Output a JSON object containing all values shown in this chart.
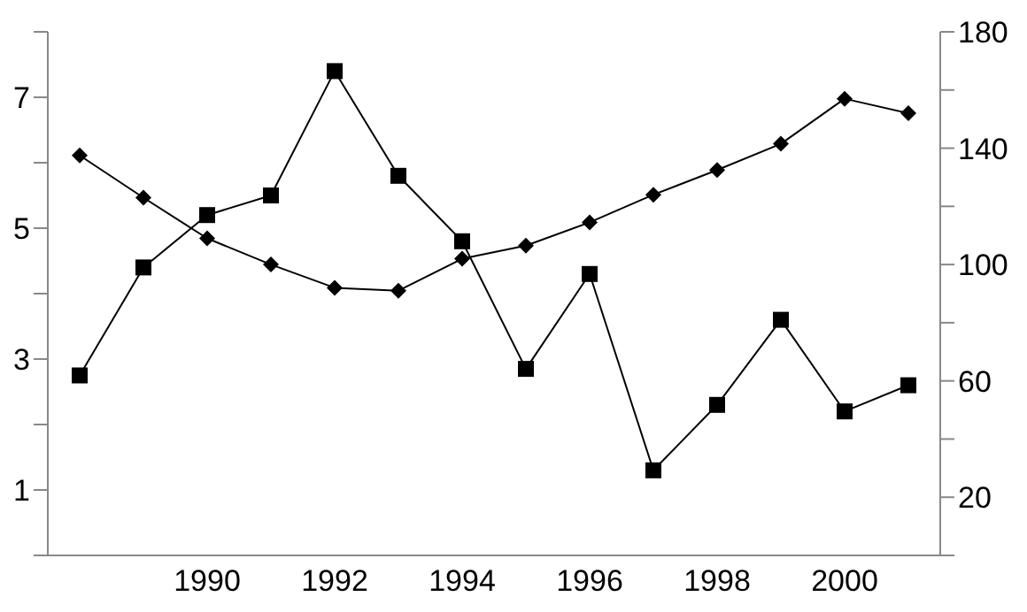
{
  "chart_data": {
    "type": "line",
    "categories": [
      null,
      null,
      "1990",
      null,
      "1992",
      null,
      "1994",
      null,
      "1996",
      null,
      "1998",
      null,
      "2000",
      null
    ],
    "series": [
      {
        "color": "#000000",
        "marker": "square",
        "values": [
          2.75,
          4.4,
          5.2,
          5.5,
          7.4,
          5.8,
          4.8,
          2.85,
          4.3,
          1.3,
          2.3,
          3.6,
          2.2,
          2.6
        ]
      },
      {
        "color": "#000000",
        "marker": "diamond",
        "axis": "y2",
        "values": [
          137.5,
          123,
          109,
          100,
          92,
          91,
          102,
          106.5,
          114.5,
          124,
          132.5,
          141.5,
          157,
          152
        ]
      }
    ],
    "ylim": [
      0,
      8
    ],
    "yticks": [
      {
        "value": 0,
        "label": null
      },
      1,
      {
        "value": 2,
        "label": null
      },
      3,
      {
        "value": 4,
        "label": null
      },
      5,
      {
        "value": 6,
        "label": null
      },
      7,
      {
        "value": 8,
        "label": null
      }
    ],
    "y2lim": [
      0,
      180
    ],
    "y2ticks": [
      {
        "value": 0,
        "label": null
      },
      20,
      {
        "value": 40,
        "label": null
      },
      60,
      {
        "value": 80,
        "label": null
      },
      100,
      {
        "value": 120,
        "label": null
      },
      140,
      {
        "value": 160,
        "label": null
      },
      180
    ],
    "grid": false,
    "legend": false,
    "line_style": "solid"
  }
}
